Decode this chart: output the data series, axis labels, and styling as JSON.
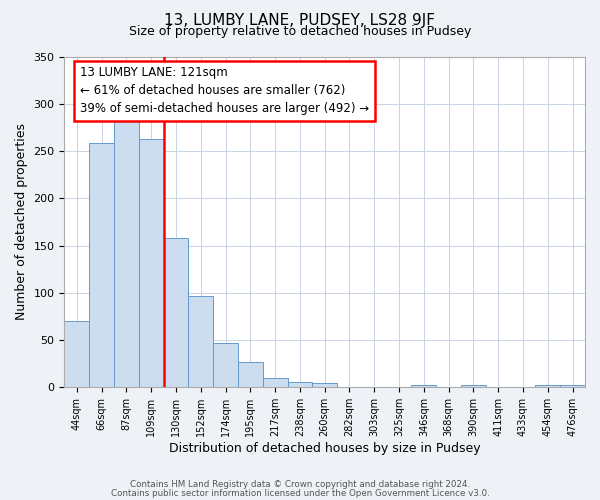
{
  "title": "13, LUMBY LANE, PUDSEY, LS28 9JF",
  "subtitle": "Size of property relative to detached houses in Pudsey",
  "xlabel": "Distribution of detached houses by size in Pudsey",
  "ylabel": "Number of detached properties",
  "categories": [
    "44sqm",
    "66sqm",
    "87sqm",
    "109sqm",
    "130sqm",
    "152sqm",
    "174sqm",
    "195sqm",
    "217sqm",
    "238sqm",
    "260sqm",
    "282sqm",
    "303sqm",
    "325sqm",
    "346sqm",
    "368sqm",
    "390sqm",
    "411sqm",
    "433sqm",
    "454sqm",
    "476sqm"
  ],
  "values": [
    70,
    258,
    295,
    263,
    158,
    97,
    47,
    27,
    10,
    6,
    5,
    0,
    0,
    0,
    3,
    0,
    3,
    0,
    0,
    2,
    2
  ],
  "bar_color": "#ccddf0",
  "bar_edge_color": "#6699cc",
  "property_line_color": "red",
  "annotation_title": "13 LUMBY LANE: 121sqm",
  "annotation_line1": "← 61% of detached houses are smaller (762)",
  "annotation_line2": "39% of semi-detached houses are larger (492) →",
  "annotation_box_color": "white",
  "annotation_box_edge_color": "red",
  "ylim": [
    0,
    350
  ],
  "yticks": [
    0,
    50,
    100,
    150,
    200,
    250,
    300,
    350
  ],
  "footnote1": "Contains HM Land Registry data © Crown copyright and database right 2024.",
  "footnote2": "Contains public sector information licensed under the Open Government Licence v3.0.",
  "background_color": "#eef2f7",
  "plot_background_color": "#ffffff",
  "grid_color": "#c8d4e3"
}
